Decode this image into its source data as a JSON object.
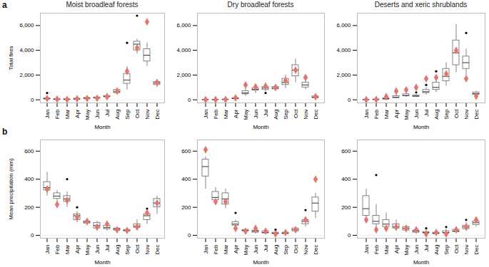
{
  "chart_data": [
    {
      "type": "box",
      "panel_label": "a",
      "title": "Moist broadleaf forests",
      "x_label": "Month",
      "y_label": "Total fires",
      "categories": [
        "Jan",
        "Feb",
        "Mar",
        "Apr",
        "May",
        "Jun",
        "Jul",
        "Aug",
        "Sep",
        "Oct",
        "Nov",
        "Dec"
      ],
      "boxes": {
        "min": [
          20,
          10,
          10,
          10,
          50,
          80,
          150,
          450,
          800,
          3700,
          2700,
          1000
        ],
        "q1": [
          50,
          20,
          20,
          30,
          80,
          120,
          220,
          550,
          1300,
          4000,
          3100,
          1200
        ],
        "median": [
          80,
          40,
          30,
          60,
          120,
          160,
          260,
          650,
          1600,
          4500,
          3600,
          1350
        ],
        "q3": [
          120,
          60,
          50,
          100,
          160,
          200,
          320,
          800,
          2100,
          4700,
          4100,
          1450
        ],
        "max": [
          180,
          90,
          80,
          150,
          220,
          260,
          400,
          950,
          2700,
          4900,
          4600,
          1600
        ]
      },
      "points": {
        "color": "#e8736a",
        "marker": "diamond",
        "values": [
          100,
          50,
          30,
          80,
          100,
          130,
          250,
          700,
          2300,
          4200,
          6300,
          1400
        ]
      },
      "outliers": [
        {
          "category": "Jan",
          "value": 550
        },
        {
          "category": "Sep",
          "value": 4600
        },
        {
          "category": "Oct",
          "value": 6800
        }
      ],
      "ylim": [
        -250,
        7000
      ],
      "yticks": [
        0,
        {
          "value": 2000,
          "label": "2,000"
        },
        {
          "value": 4000,
          "label": "4,000"
        },
        {
          "value": 6000,
          "label": "6,000"
        }
      ]
    },
    {
      "type": "box",
      "title": "Dry broadleaf forests",
      "x_label": "Month",
      "categories": [
        "Jan",
        "Feb",
        "Mar",
        "Apr",
        "May",
        "Jun",
        "Jul",
        "Aug",
        "Sep",
        "Oct",
        "Nov",
        "Dec"
      ],
      "boxes": {
        "min": [
          0,
          0,
          5,
          30,
          300,
          500,
          650,
          700,
          900,
          1400,
          800,
          100
        ],
        "q1": [
          5,
          5,
          10,
          60,
          450,
          750,
          800,
          850,
          1200,
          1900,
          1000,
          150
        ],
        "median": [
          10,
          10,
          20,
          100,
          550,
          850,
          950,
          950,
          1400,
          2400,
          1200,
          200
        ],
        "q3": [
          15,
          15,
          30,
          150,
          700,
          950,
          1050,
          1050,
          1700,
          2800,
          1400,
          280
        ],
        "max": [
          25,
          20,
          50,
          200,
          900,
          1100,
          1150,
          1200,
          2000,
          3300,
          1600,
          350
        ]
      },
      "points": {
        "color": "#e8736a",
        "marker": "diamond",
        "values": [
          10,
          10,
          20,
          150,
          1200,
          1050,
          1100,
          1000,
          1550,
          2400,
          1800,
          250
        ]
      },
      "outliers": [
        {
          "category": "Jul",
          "value": 550
        }
      ],
      "ylim": [
        -250,
        7000
      ],
      "yticks": [
        0,
        {
          "value": 2000,
          "label": "2,000"
        },
        {
          "value": 4000,
          "label": "4,000"
        },
        {
          "value": 6000,
          "label": "6,000"
        }
      ]
    },
    {
      "type": "box",
      "title": "Deserts and xeric shrublands",
      "x_label": "Month",
      "categories": [
        "Jan",
        "Feb",
        "Mar",
        "Apr",
        "May",
        "Jun",
        "Jul",
        "Aug",
        "Sep",
        "Oct",
        "Nov",
        "Dec"
      ],
      "boxes": {
        "min": [
          0,
          0,
          20,
          100,
          200,
          200,
          400,
          600,
          1100,
          2200,
          1900,
          300
        ],
        "q1": [
          5,
          10,
          50,
          150,
          300,
          250,
          550,
          800,
          1500,
          2800,
          2500,
          400
        ],
        "median": [
          10,
          20,
          70,
          200,
          350,
          300,
          650,
          1000,
          1900,
          3800,
          3000,
          500
        ],
        "q3": [
          15,
          30,
          120,
          300,
          450,
          350,
          800,
          1400,
          2500,
          4800,
          3500,
          600
        ],
        "max": [
          25,
          50,
          180,
          400,
          600,
          450,
          1000,
          1700,
          3000,
          6100,
          4100,
          700
        ]
      },
      "points": {
        "color": "#e8736a",
        "marker": "diamond",
        "values": [
          10,
          20,
          250,
          700,
          800,
          1000,
          1700,
          1800,
          2100,
          4000,
          1700,
          300
        ]
      },
      "outliers": [
        {
          "category": "Jun",
          "value": 600
        },
        {
          "category": "Jul",
          "value": 1200
        },
        {
          "category": "Aug",
          "value": 2300
        },
        {
          "category": "Nov",
          "value": 5400
        }
      ],
      "ylim": [
        -250,
        7000
      ],
      "yticks": [
        0,
        {
          "value": 2000,
          "label": "2,000"
        },
        {
          "value": 4000,
          "label": "4,000"
        },
        {
          "value": 6000,
          "label": "6,000"
        }
      ]
    },
    {
      "type": "box",
      "panel_label": "b",
      "x_label": "Month",
      "y_label": "Mean precipitation (mm)",
      "categories": [
        "Jan",
        "Feb",
        "Mar",
        "Apr",
        "May",
        "Jun",
        "Jul",
        "Aug",
        "Sep",
        "Oct",
        "Nov",
        "Dec"
      ],
      "boxes": {
        "min": [
          280,
          230,
          200,
          90,
          70,
          30,
          30,
          25,
          20,
          40,
          80,
          150
        ],
        "q1": [
          320,
          260,
          240,
          110,
          85,
          50,
          45,
          35,
          30,
          55,
          110,
          200
        ],
        "median": [
          340,
          280,
          260,
          140,
          95,
          70,
          55,
          45,
          35,
          65,
          140,
          230
        ],
        "q3": [
          380,
          300,
          280,
          150,
          100,
          90,
          70,
          50,
          40,
          80,
          150,
          260
        ],
        "max": [
          450,
          320,
          310,
          170,
          110,
          100,
          100,
          60,
          45,
          110,
          180,
          280
        ]
      },
      "points": {
        "color": "#e8736a",
        "marker": "diamond",
        "values": [
          330,
          220,
          250,
          130,
          100,
          60,
          80,
          40,
          35,
          60,
          160,
          230
        ]
      },
      "outliers": [
        {
          "category": "Mar",
          "value": 400
        },
        {
          "category": "Apr",
          "value": 200
        },
        {
          "category": "Nov",
          "value": 190
        }
      ],
      "ylim": [
        -20,
        680
      ],
      "yticks": [
        0,
        200,
        400,
        600
      ]
    },
    {
      "type": "box",
      "x_label": "Month",
      "categories": [
        "Jan",
        "Feb",
        "Mar",
        "Apr",
        "May",
        "Jun",
        "Jul",
        "Aug",
        "Sep",
        "Oct",
        "Nov",
        "Dec"
      ],
      "boxes": {
        "min": [
          330,
          220,
          190,
          60,
          20,
          10,
          10,
          5,
          5,
          20,
          60,
          120
        ],
        "q1": [
          420,
          250,
          220,
          70,
          30,
          20,
          15,
          10,
          10,
          30,
          80,
          170
        ],
        "median": [
          490,
          270,
          260,
          80,
          35,
          30,
          20,
          15,
          15,
          40,
          100,
          230
        ],
        "q3": [
          540,
          310,
          300,
          95,
          40,
          35,
          30,
          20,
          20,
          50,
          110,
          270
        ],
        "max": [
          560,
          340,
          330,
          110,
          45,
          40,
          35,
          25,
          25,
          60,
          130,
          300
        ]
      },
      "points": {
        "color": "#e8736a",
        "marker": "diamond",
        "values": [
          610,
          240,
          240,
          50,
          30,
          50,
          30,
          10,
          20,
          40,
          110,
          400
        ]
      },
      "outliers": [
        {
          "category": "Apr",
          "value": 160
        },
        {
          "category": "Aug",
          "value": 40
        },
        {
          "category": "Nov",
          "value": 180
        }
      ],
      "ylim": [
        -20,
        680
      ],
      "yticks": [
        0,
        200,
        400,
        600
      ]
    },
    {
      "type": "box",
      "x_label": "Month",
      "categories": [
        "Jan",
        "Feb",
        "Mar",
        "Apr",
        "May",
        "Jun",
        "Jul",
        "Aug",
        "Sep",
        "Oct",
        "Nov",
        "Dec"
      ],
      "boxes": {
        "min": [
          100,
          50,
          40,
          30,
          20,
          10,
          5,
          5,
          10,
          15,
          30,
          60
        ],
        "q1": [
          140,
          80,
          60,
          50,
          35,
          20,
          15,
          10,
          15,
          25,
          45,
          75
        ],
        "median": [
          190,
          100,
          80,
          60,
          50,
          30,
          20,
          15,
          20,
          30,
          60,
          90
        ],
        "q3": [
          280,
          140,
          110,
          80,
          60,
          35,
          25,
          20,
          30,
          40,
          70,
          100
        ],
        "max": [
          330,
          220,
          160,
          110,
          70,
          40,
          35,
          30,
          45,
          60,
          90,
          110
        ]
      },
      "points": {
        "color": "#e8736a",
        "marker": "diamond",
        "values": [
          110,
          40,
          50,
          60,
          50,
          40,
          10,
          20,
          10,
          40,
          60,
          110
        ]
      },
      "outliers": [
        {
          "category": "Feb",
          "value": 430
        },
        {
          "category": "Jul",
          "value": 50
        },
        {
          "category": "Sep",
          "value": 60
        },
        {
          "category": "Nov",
          "value": 110
        }
      ],
      "ylim": [
        -20,
        680
      ],
      "yticks": [
        0,
        200,
        400,
        600
      ]
    }
  ]
}
